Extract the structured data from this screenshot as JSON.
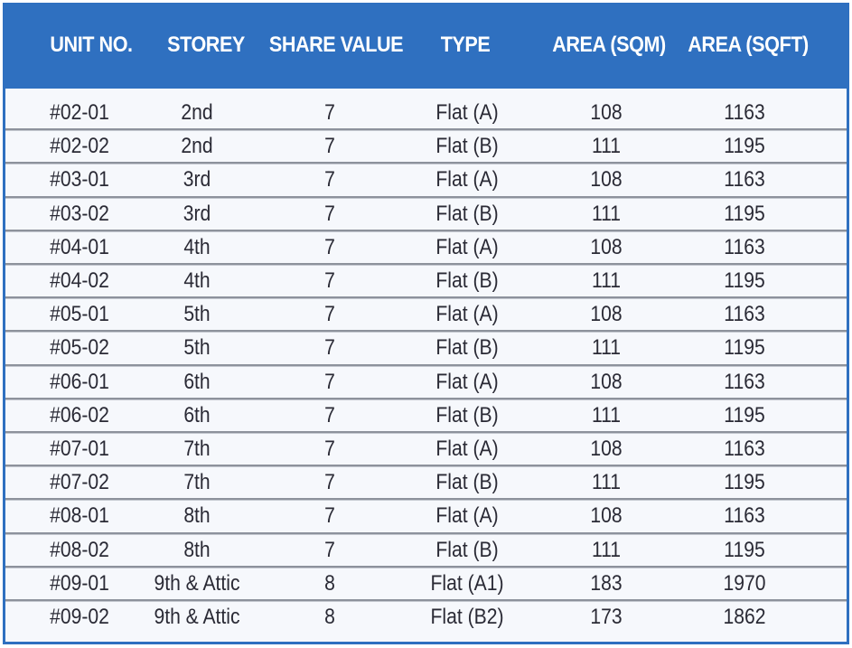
{
  "table": {
    "headers": [
      "UNIT NO.",
      "STOREY",
      "SHARE VALUE",
      "TYPE",
      "AREA (SQM)",
      "AREA (SQFT)"
    ],
    "rows": [
      [
        "#02-01",
        "2nd",
        "7",
        "Flat (A)",
        "108",
        "1163"
      ],
      [
        "#02-02",
        "2nd",
        "7",
        "Flat (B)",
        "111",
        "1195"
      ],
      [
        "#03-01",
        "3rd",
        "7",
        "Flat (A)",
        "108",
        "1163"
      ],
      [
        "#03-02",
        "3rd",
        "7",
        "Flat (B)",
        "111",
        "1195"
      ],
      [
        "#04-01",
        "4th",
        "7",
        "Flat (A)",
        "108",
        "1163"
      ],
      [
        "#04-02",
        "4th",
        "7",
        "Flat (B)",
        "111",
        "1195"
      ],
      [
        "#05-01",
        "5th",
        "7",
        "Flat (A)",
        "108",
        "1163"
      ],
      [
        "#05-02",
        "5th",
        "7",
        "Flat (B)",
        "111",
        "1195"
      ],
      [
        "#06-01",
        "6th",
        "7",
        "Flat (A)",
        "108",
        "1163"
      ],
      [
        "#06-02",
        "6th",
        "7",
        "Flat (B)",
        "111",
        "1195"
      ],
      [
        "#07-01",
        "7th",
        "7",
        "Flat (A)",
        "108",
        "1163"
      ],
      [
        "#07-02",
        "7th",
        "7",
        "Flat (B)",
        "111",
        "1195"
      ],
      [
        "#08-01",
        "8th",
        "7",
        "Flat (A)",
        "108",
        "1163"
      ],
      [
        "#08-02",
        "8th",
        "7",
        "Flat (B)",
        "111",
        "1195"
      ],
      [
        "#09-01",
        "9th & Attic",
        "8",
        "Flat (A1)",
        "183",
        "1970"
      ],
      [
        "#09-02",
        "9th & Attic",
        "8",
        "Flat (B2)",
        "173",
        "1862"
      ]
    ]
  }
}
